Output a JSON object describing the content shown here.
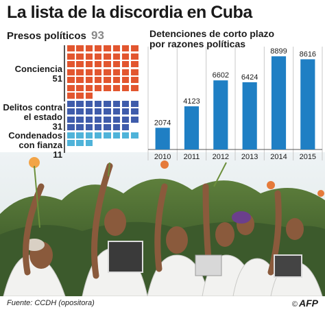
{
  "title": "La lista de la discordia en Cuba",
  "political_prisoners": {
    "label": "Presos políticos",
    "total": "93",
    "categories": [
      {
        "label_lines": [
          "Conciencia"
        ],
        "count": "51",
        "value": 51,
        "color": "#e2562f"
      },
      {
        "label_lines": [
          "Delitos contra",
          "el estado"
        ],
        "count": "31",
        "value": 31,
        "color": "#3f5cab"
      },
      {
        "label_lines": [
          "Condenados",
          "con fianza"
        ],
        "count": "11",
        "value": 11,
        "color": "#4fb3d9"
      }
    ]
  },
  "chart_data": {
    "type": "bar",
    "title": "Detenciones de corto plazo por razones políticas",
    "categories": [
      "2010",
      "2011",
      "2012",
      "2013",
      "2014",
      "2015"
    ],
    "values": [
      2074,
      4123,
      6602,
      6424,
      8899,
      8616
    ],
    "value_labels": [
      "2074",
      "4123",
      "6602",
      "6424",
      "8899",
      "8616"
    ],
    "ylim": [
      0,
      9300
    ],
    "grid": true,
    "bar_color": "#1f7fc4"
  },
  "footer": {
    "source": "Fuente: CCDH (opositora)",
    "credit_symbol": "©",
    "credit": "AFP"
  }
}
